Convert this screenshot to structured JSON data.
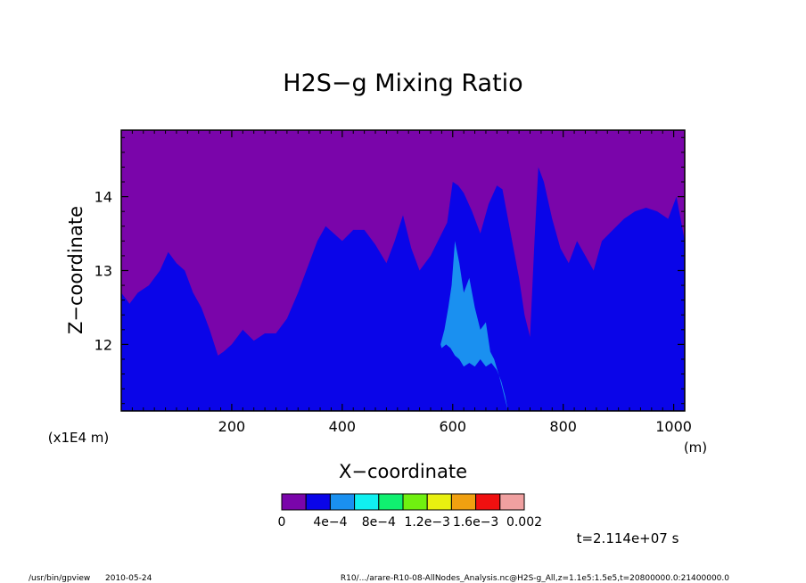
{
  "chart_data": {
    "type": "area",
    "title": "H2S−g Mixing Ratio",
    "xlabel": "X−coordinate",
    "ylabel": "Z−coordinate",
    "x_unit_label": "(m)",
    "y_scale_label": "(x1E4 m)",
    "xlim": [
      0,
      1020
    ],
    "ylim": [
      11.1,
      14.9
    ],
    "x_ticks": [
      200,
      400,
      600,
      800,
      1000
    ],
    "x_tick_labels": [
      "200",
      "400",
      "600",
      "800",
      "1000"
    ],
    "y_ticks": [
      12,
      13,
      14
    ],
    "y_tick_labels": [
      "12",
      "13",
      "14"
    ],
    "grid": false,
    "colorbar": {
      "colors": [
        "#7a05aa",
        "#0a05e8",
        "#1a90f0",
        "#10f0f0",
        "#10f070",
        "#70f010",
        "#e8f010",
        "#f0a010",
        "#f01010",
        "#f0a0a0"
      ],
      "labels": [
        "0",
        "4e−4",
        "8e−4",
        "1.2e−3",
        "1.6e−3",
        "0.002"
      ]
    },
    "series": [
      {
        "color": "#7a05aa",
        "x": [
          0,
          1020
        ],
        "y": [
          14.9,
          14.9
        ]
      },
      {
        "color": "#0a05e8",
        "x": [
          0,
          15,
          30,
          50,
          70,
          85,
          100,
          115,
          130,
          145,
          160,
          175,
          185,
          200,
          220,
          240,
          260,
          280,
          300,
          320,
          340,
          355,
          370,
          385,
          400,
          420,
          440,
          460,
          480,
          495,
          510,
          525,
          540,
          560,
          580,
          590,
          600,
          610,
          620,
          635,
          650,
          665,
          680,
          690,
          700,
          710,
          720,
          730,
          740,
          748,
          755,
          765,
          780,
          795,
          810,
          825,
          840,
          855,
          870,
          890,
          910,
          930,
          950,
          970,
          990,
          1005,
          1020
        ],
        "y": [
          12.7,
          12.55,
          12.7,
          12.8,
          13.0,
          13.25,
          13.1,
          13.0,
          12.7,
          12.5,
          12.2,
          11.85,
          11.9,
          12.0,
          12.2,
          12.05,
          12.15,
          12.15,
          12.35,
          12.7,
          13.1,
          13.4,
          13.6,
          13.5,
          13.4,
          13.55,
          13.55,
          13.35,
          13.1,
          13.4,
          13.75,
          13.3,
          13.0,
          13.2,
          13.5,
          13.65,
          14.2,
          14.15,
          14.05,
          13.8,
          13.5,
          13.9,
          14.15,
          14.1,
          13.7,
          13.3,
          12.9,
          12.4,
          12.1,
          13.4,
          14.4,
          14.2,
          13.7,
          13.3,
          13.1,
          13.4,
          13.2,
          13.0,
          13.4,
          13.55,
          13.7,
          13.8,
          13.85,
          13.8,
          13.7,
          14.0,
          13.4
        ]
      },
      {
        "color": "#1a90f0",
        "x": [
          578,
          585,
          592,
          598,
          604,
          612,
          620,
          630,
          640,
          650,
          660,
          668,
          675,
          683,
          690,
          695,
          700,
          700,
          695,
          688,
          680,
          670,
          660,
          650,
          640,
          630,
          620,
          612,
          604,
          596,
          588,
          580
        ],
        "y": [
          12.0,
          12.2,
          12.5,
          12.8,
          13.4,
          13.1,
          12.7,
          12.9,
          12.5,
          12.2,
          12.3,
          11.9,
          11.8,
          11.6,
          11.4,
          11.25,
          11.1,
          11.1,
          11.3,
          11.5,
          11.65,
          11.75,
          11.7,
          11.8,
          11.7,
          11.75,
          11.7,
          11.8,
          11.85,
          11.95,
          12.0,
          11.95
        ]
      }
    ]
  },
  "footer": {
    "time_label": "t=2.114e+07 s",
    "program": "/usr/bin/gpview",
    "date": "2010-05-24",
    "source": "R10/.../arare-R10-08-AllNodes_Analysis.nc@H2S-g_All,z=1.1e5:1.5e5,t=20800000.0:21400000.0"
  }
}
